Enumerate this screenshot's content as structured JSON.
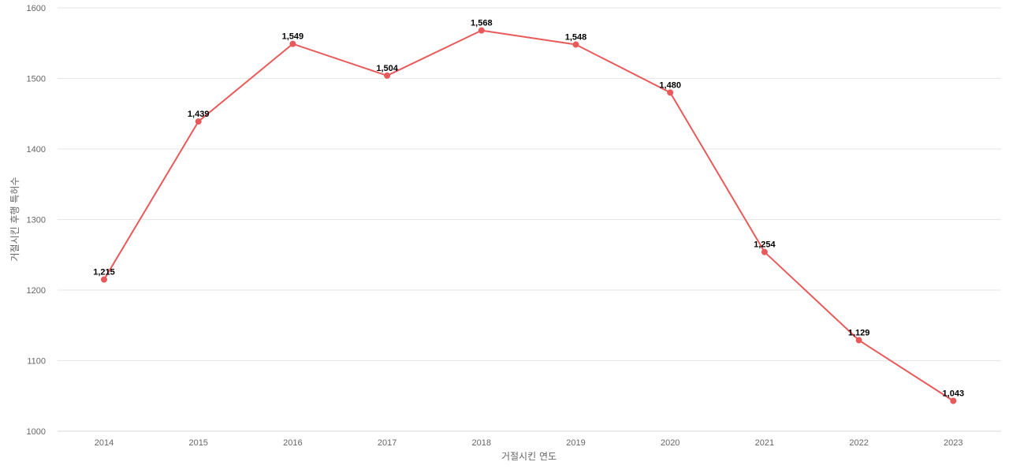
{
  "chart_data": {
    "type": "line",
    "title": "",
    "xlabel": "거절시킨 연도",
    "ylabel": "거절시킨 후행 특허수",
    "categories": [
      "2014",
      "2015",
      "2016",
      "2017",
      "2018",
      "2019",
      "2020",
      "2021",
      "2022",
      "2023"
    ],
    "series": [
      {
        "values": [
          1215,
          1439,
          1549,
          1504,
          1568,
          1548,
          1480,
          1254,
          1129,
          1043
        ],
        "labels": [
          "1,215",
          "1,439",
          "1,549",
          "1,504",
          "1,568",
          "1,548",
          "1,480",
          "1,254",
          "1,129",
          "1,043"
        ],
        "color": "#e85a5a"
      }
    ],
    "ylim": [
      1000,
      1600
    ],
    "yticks": [
      "1000",
      "1100",
      "1200",
      "1300",
      "1400",
      "1500",
      "1600"
    ],
    "grid": true,
    "legend": "none"
  }
}
